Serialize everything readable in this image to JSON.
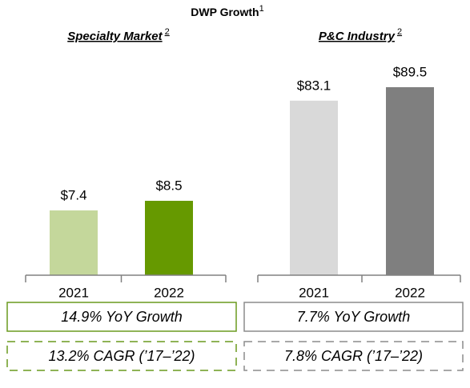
{
  "title": "DWP Growth",
  "title_note": "1",
  "chart_data": [
    {
      "type": "bar",
      "title": "Specialty Market",
      "title_note": "2",
      "categories": [
        "2021",
        "2022"
      ],
      "values": [
        7.4,
        8.5
      ],
      "value_labels": [
        "$7.4",
        "$8.5"
      ],
      "colors": [
        "#c4d79b",
        "#669900"
      ],
      "box_color": "#6a9a1f",
      "yoy": "14.9% YoY Growth",
      "cagr": "13.2% CAGR (’17–’22)"
    },
    {
      "type": "bar",
      "title": "P&C Industry",
      "title_note": "2",
      "categories": [
        "2021",
        "2022"
      ],
      "values": [
        83.1,
        89.5
      ],
      "value_labels": [
        "$83.1",
        "$89.5"
      ],
      "colors": [
        "#d9d9d9",
        "#7f7f7f"
      ],
      "box_color": "#8c8c8c",
      "yoy": "7.7% YoY Growth",
      "cagr": "7.8% CAGR (’17–’22)"
    }
  ]
}
